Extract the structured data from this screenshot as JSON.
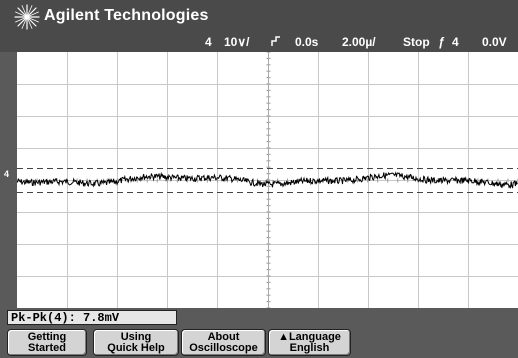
{
  "header": {
    "brand": "Agilent Technologies",
    "channel": "4",
    "scale": "10∨/",
    "trigger_pos": "0.0s",
    "timebase": "2.00µ/",
    "run_state": "Stop",
    "trigger_icon": "ƒ",
    "trigger_channel": "4",
    "trigger_level": "0.0V"
  },
  "screen": {
    "left_marker": "4",
    "trace_color": "#000000",
    "grid_color": "#c8c8c8",
    "cursor_color": "#444444"
  },
  "readout": {
    "text": "Pk-Pk(4): 7.8mV"
  },
  "softkeys": {
    "getting_started": [
      "Getting",
      "Started"
    ],
    "using_quick_help": [
      "Using",
      "Quick Help"
    ],
    "about_oscilloscope": [
      "About",
      "Oscilloscope"
    ],
    "language": [
      "▲Language",
      "English"
    ]
  },
  "colors": {
    "bezel": "#5a5a5a",
    "screen_bg": "#ffffff",
    "softkey_bg": "#d4d4d4"
  }
}
